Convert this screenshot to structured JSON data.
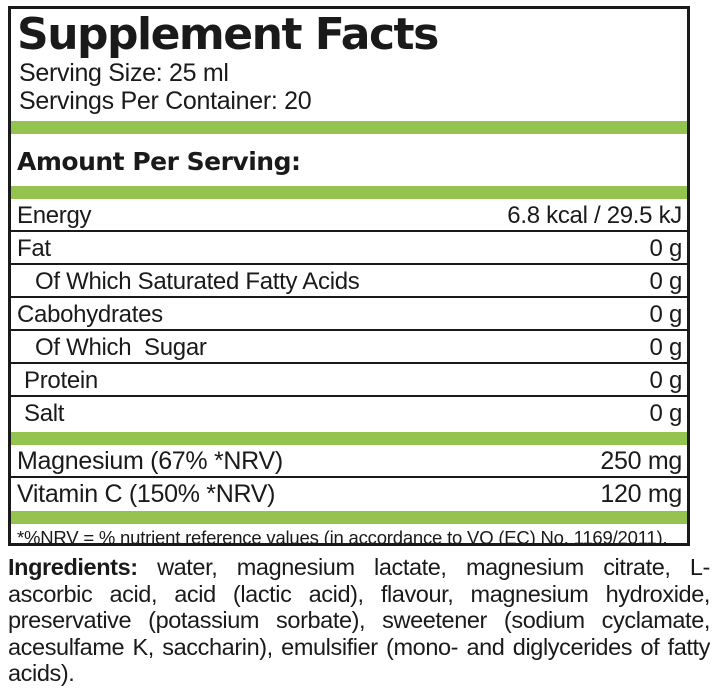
{
  "label": {
    "title": "Supplement Facts",
    "serving_size": "Serving Size: 25 ml",
    "servings_per_container": "Servings Per Container: 20",
    "amount_per_serving": "Amount Per Serving:",
    "rows": [
      {
        "name": "Energy",
        "value": "6.8 kcal / 29.5 kJ"
      },
      {
        "name": "Fat",
        "value": "0 g"
      },
      {
        "name": "Of Which Saturated Fatty Acids",
        "value": "0 g"
      },
      {
        "name": "Cabohydrates",
        "value": "0 g"
      },
      {
        "name": "Of Which  Sugar",
        "value": "0 g"
      },
      {
        "name": "Protein",
        "value": "0 g"
      },
      {
        "name": "Salt",
        "value": "0 g"
      }
    ],
    "minerals": [
      {
        "name": "Magnesium (67% *NRV)",
        "value": "250 mg"
      },
      {
        "name": "Vitamin C (150% *NRV)",
        "value": "120 mg"
      }
    ],
    "footnote": "*%NRV = % nutrient reference values (in accordance to VO (EC) No. 1169/2011).",
    "ingredients_label": "Ingredients:",
    "ingredients_text": " water, magnesium lactate, magnesium citrate, L-ascorbic acid, acid (lactic acid), flavour, magnesium hydroxide, preservative (potassium sorbate), sweetener (sodium cyclamate, acesulfame K, saccharin), emulsifier (mono- and diglycerides of fatty acids).",
    "colors": {
      "accent_green": "#94C34F",
      "rule_black": "#1a1a1a"
    }
  }
}
